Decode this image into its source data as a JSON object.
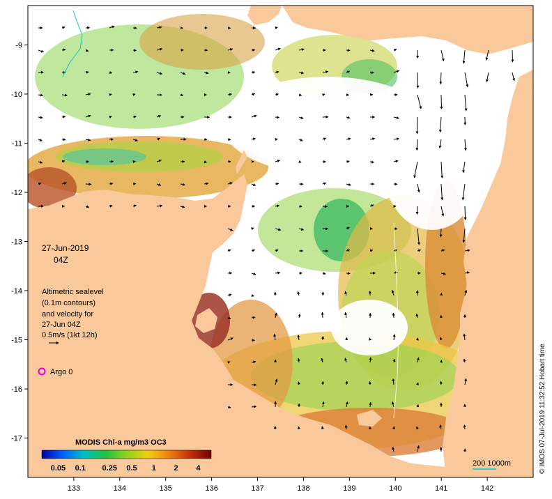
{
  "colors": {
    "land": "#f9c99c",
    "ocean": "#ffffff",
    "frame": "#000000",
    "argo": "#e000e0",
    "scalebar": "#00cccc",
    "arrow": "#000000"
  },
  "map": {
    "lon_range": [
      132.0,
      143.0
    ],
    "lat_range": [
      -17.8,
      -8.2
    ],
    "lon_ticks": [
      "133",
      "134",
      "135",
      "136",
      "137",
      "138",
      "139",
      "140",
      "141",
      "142"
    ],
    "lat_ticks": [
      "-9",
      "-10",
      "-11",
      "-12",
      "-13",
      "-14",
      "-15",
      "-16",
      "-17"
    ]
  },
  "date": {
    "day": "27-Jun-2019",
    "time": "04Z"
  },
  "legend_text": {
    "line1": "Altimetric sealevel",
    "line2": "(0.1m contours)",
    "line3": "and velocity for",
    "line4": "27-Jun 04Z",
    "line5": "0.5m/s (1kt 12h)"
  },
  "argo": {
    "label": "Argo 0"
  },
  "colorbar": {
    "title": "MODIS Chl-a mg/m3 OC3",
    "stops": [
      "#0000a0",
      "#0060ff",
      "#00c0c0",
      "#20c040",
      "#90d020",
      "#f0d010",
      "#f08010",
      "#c03010",
      "#700000"
    ],
    "labels": [
      "0.05",
      "0.1",
      "0.25",
      "0.5",
      "1",
      "2",
      "4"
    ]
  },
  "scalebar": {
    "label": "200  1000m"
  },
  "credit": {
    "text": "© IMOS 07-Jul-2019 11:32:52 Hobart time"
  }
}
